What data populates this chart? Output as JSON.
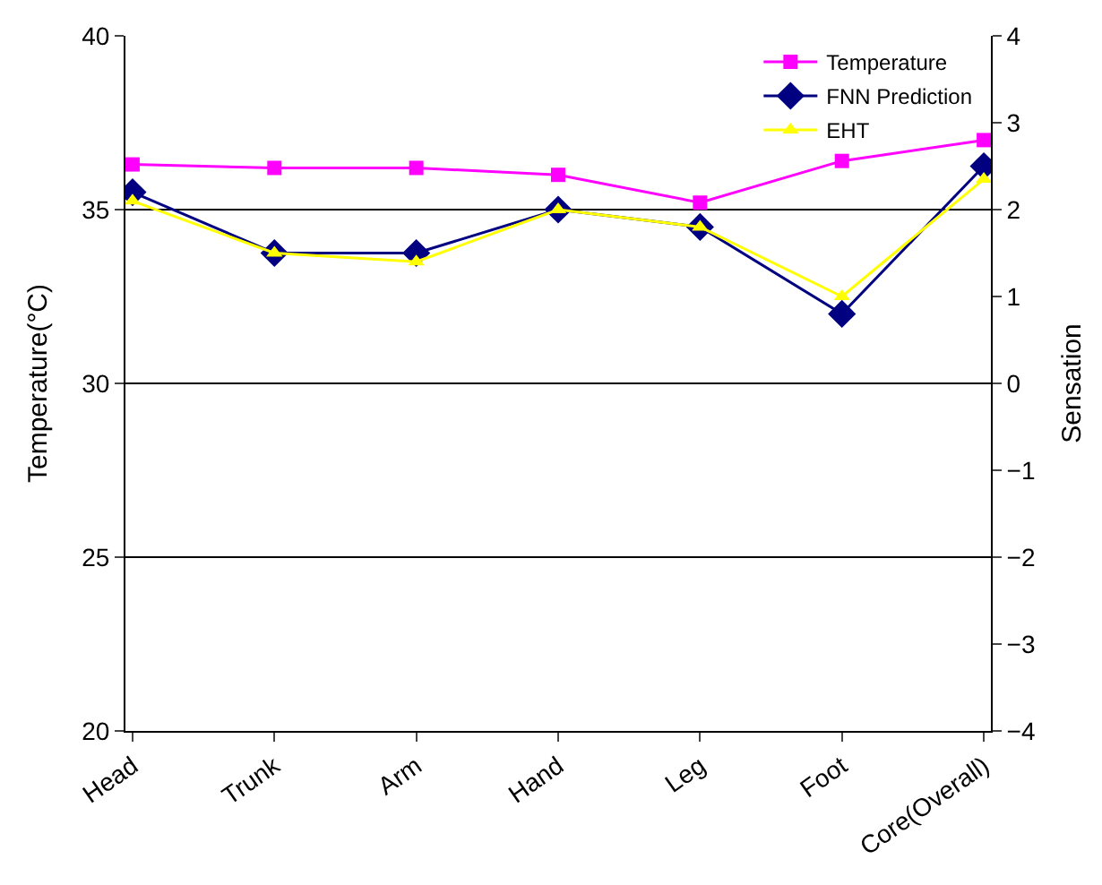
{
  "chart_data": {
    "type": "line",
    "ylabel": "Temperature(°C)",
    "y2label": "Sensation",
    "categories": [
      "Head",
      "Trunk",
      "Arm",
      "Hand",
      "Leg",
      "Foot",
      "Core(Overall)"
    ],
    "series": [
      {
        "name": "Temperature",
        "color": "#ff00ff",
        "marker": "square",
        "values": [
          36.3,
          36.2,
          36.2,
          36.0,
          35.2,
          36.4,
          37.0
        ]
      },
      {
        "name": "FNN Prediction",
        "color": "#000080",
        "marker": "diamond",
        "axis": "y2",
        "values": [
          2.2,
          1.5,
          1.5,
          2.0,
          1.8,
          0.8,
          2.5
        ]
      },
      {
        "name": "EHT",
        "color": "#ffff00",
        "marker": "triangle",
        "axis": "y2",
        "values": [
          2.1,
          1.5,
          1.4,
          2.0,
          1.8,
          1.0,
          2.35
        ]
      }
    ],
    "ylim": [
      20,
      40
    ],
    "yticks": [
      20,
      25,
      30,
      35,
      40
    ],
    "y2lim": [
      -4,
      4
    ],
    "y2ticks": [
      -4,
      -3,
      -2,
      -1,
      0,
      1,
      2,
      3,
      4
    ],
    "grid": "y",
    "legend": "top right"
  }
}
